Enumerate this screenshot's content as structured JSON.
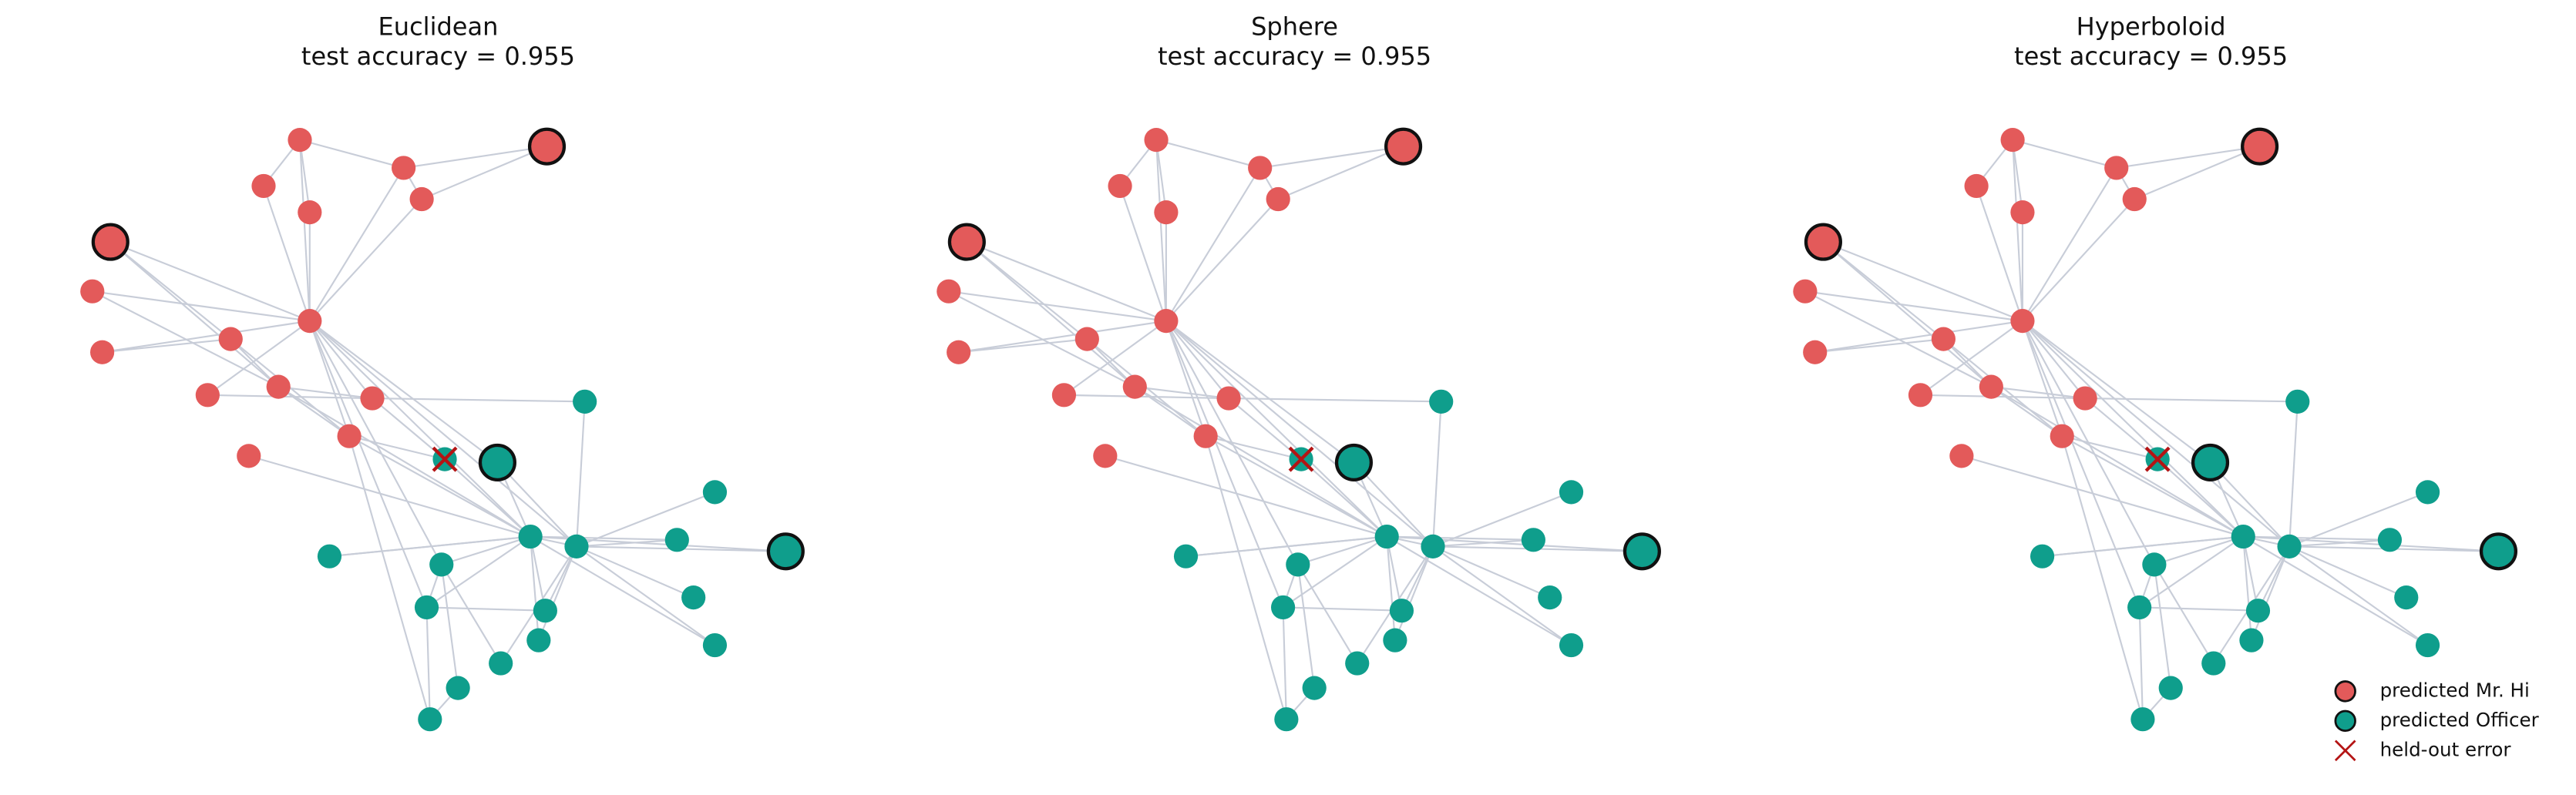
{
  "panels": [
    {
      "title": "Euclidean",
      "subtitle": "test accuracy = 0.955"
    },
    {
      "title": "Sphere",
      "subtitle": "test accuracy = 0.955"
    },
    {
      "title": "Hyperboloid",
      "subtitle": "test accuracy = 0.955"
    }
  ],
  "legend": {
    "entries": [
      {
        "label": "predicted Mr. Hi"
      },
      {
        "label": "predicted Officer"
      },
      {
        "label": "held-out error"
      }
    ]
  }
}
